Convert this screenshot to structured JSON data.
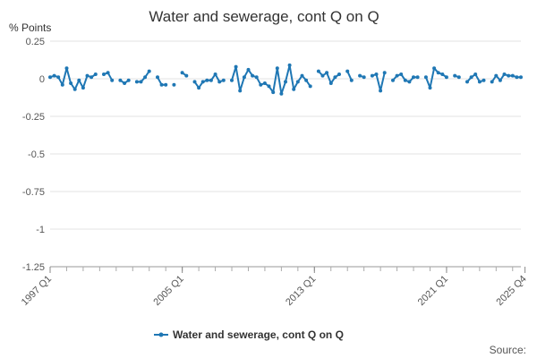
{
  "chart_data": {
    "type": "line",
    "title": "Water and sewerage, cont Q on Q",
    "ylabel": "% Points",
    "ylim": [
      -1.25,
      0.25
    ],
    "yticks": [
      0.25,
      0,
      -0.25,
      -0.5,
      -0.75,
      -1,
      -1.25
    ],
    "ytick_labels": [
      "0.25",
      "0",
      "-0.25",
      "-0.5",
      "-0.75",
      "-1",
      "-1.25"
    ],
    "xtick_labels": [
      "1997 Q1",
      "2005 Q1",
      "2013 Q1",
      "2021 Q1",
      "2025 Q4"
    ],
    "xtick_indices": [
      0,
      32,
      64,
      96,
      115
    ],
    "grid": true,
    "series": [
      {
        "name": "Water and sewerage, cont Q on Q",
        "color": "#1f77b4",
        "values": [
          0.01,
          0.02,
          0.01,
          -0.04,
          0.07,
          -0.03,
          -0.07,
          -0.01,
          -0.06,
          0.02,
          0.01,
          0.03,
          null,
          0.03,
          0.04,
          -0.01,
          null,
          -0.01,
          -0.03,
          -0.01,
          null,
          -0.02,
          -0.02,
          0.01,
          0.05,
          null,
          0.01,
          -0.04,
          -0.04,
          null,
          -0.04,
          null,
          0.04,
          0.02,
          null,
          -0.02,
          -0.06,
          -0.02,
          -0.01,
          -0.01,
          0.03,
          -0.02,
          -0.01,
          null,
          -0.01,
          0.08,
          -0.08,
          0.01,
          0.06,
          0.02,
          0.01,
          -0.04,
          -0.03,
          -0.05,
          -0.09,
          0.07,
          -0.1,
          -0.02,
          0.09,
          -0.07,
          -0.02,
          0.02,
          -0.01,
          -0.05,
          null,
          0.05,
          0.02,
          0.04,
          -0.03,
          0.01,
          0.03,
          null,
          0.05,
          -0.01,
          null,
          0.02,
          0.01,
          null,
          0.02,
          0.03,
          -0.08,
          0.04,
          null,
          -0.01,
          0.02,
          0.03,
          -0.01,
          -0.02,
          0.01,
          0.01,
          null,
          0.01,
          -0.06,
          0.07,
          0.04,
          0.03,
          0.01,
          null,
          0.02,
          0.01,
          null,
          -0.02,
          0.01,
          0.03,
          -0.02,
          -0.01,
          null,
          -0.02,
          0.02,
          -0.01,
          0.03,
          0.02,
          0.02,
          0.01,
          0.01
        ]
      }
    ]
  },
  "legend": {
    "label": "Water and sewerage, cont Q on Q"
  },
  "footer": {
    "source": "Source:"
  }
}
